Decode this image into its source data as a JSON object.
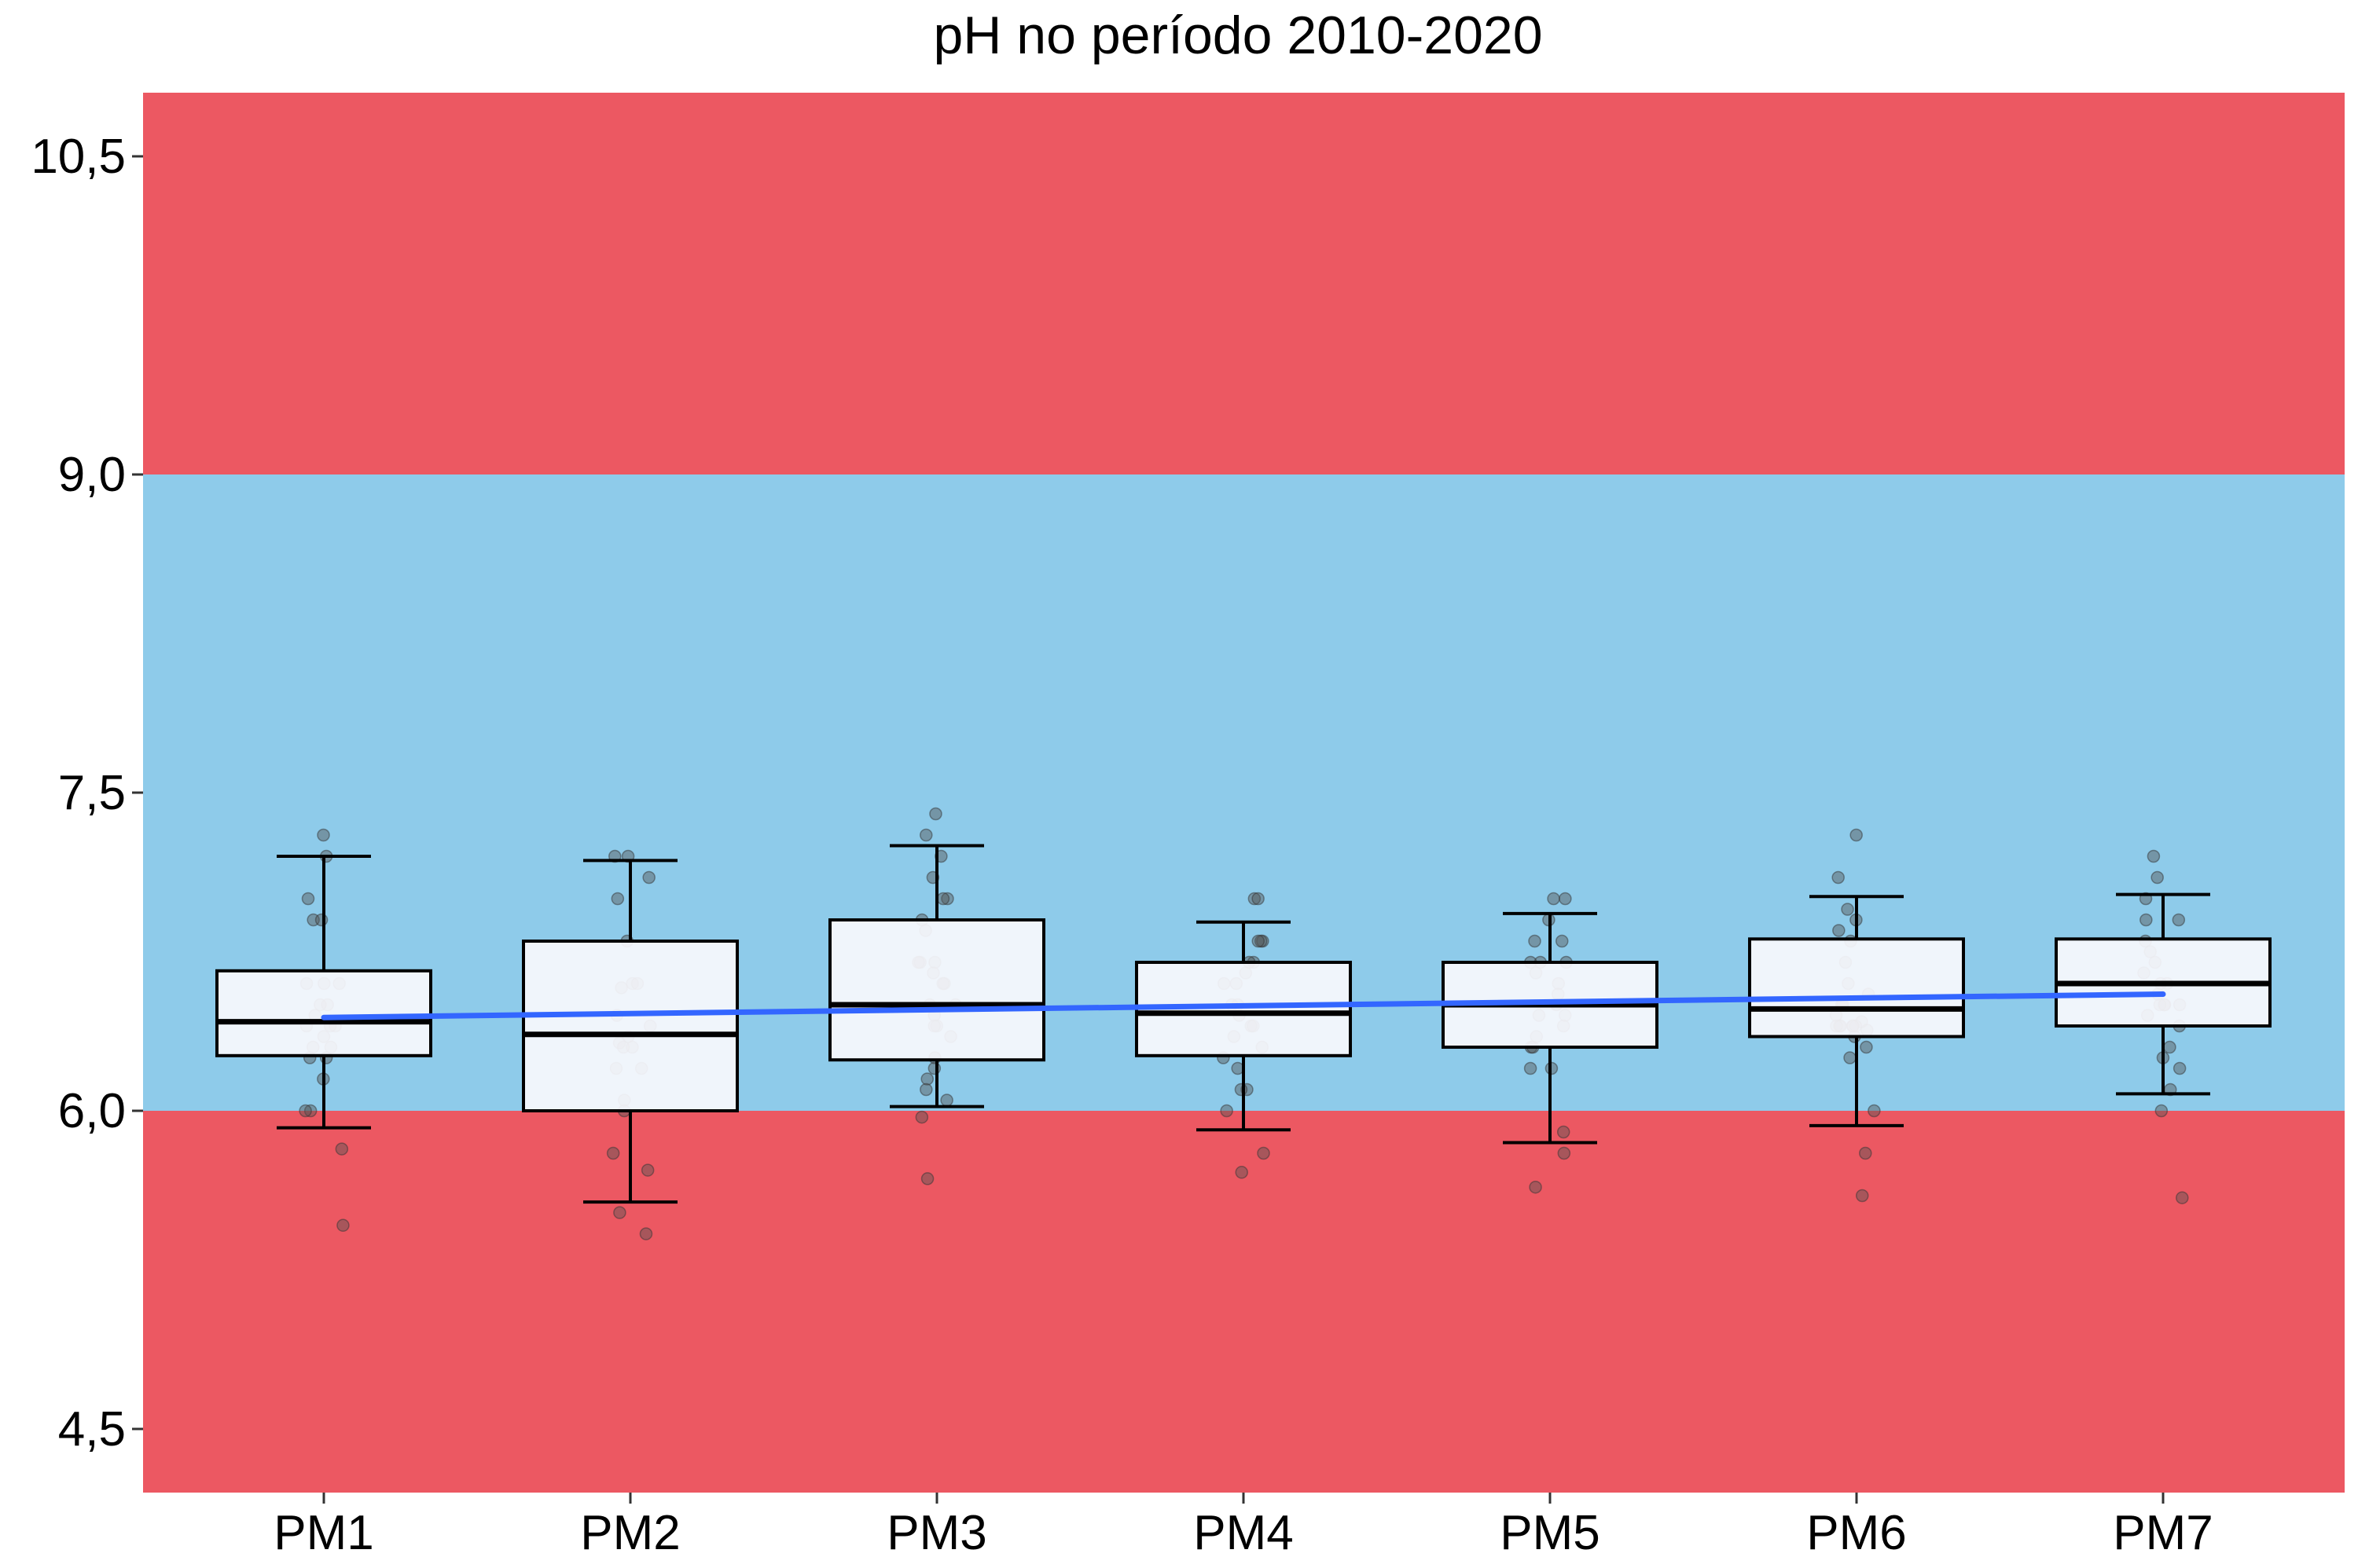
{
  "chart_data": {
    "type": "box",
    "title": "pH no período 2010-2020",
    "xlabel": "",
    "ylabel": "",
    "ylim": [
      4.2,
      10.8
    ],
    "yticks": [
      4.5,
      6.0,
      7.5,
      9.0,
      10.5
    ],
    "ytick_labels": [
      "4,5",
      "6,0",
      "7,5",
      "9,0",
      "10,5"
    ],
    "categories": [
      "PM1",
      "PM2",
      "PM3",
      "PM4",
      "PM5",
      "PM6",
      "PM7"
    ],
    "bands": [
      {
        "from": 4.2,
        "to": 6.0,
        "color": "#ec5862"
      },
      {
        "from": 6.0,
        "to": 9.0,
        "color": "#8ecbea"
      },
      {
        "from": 9.0,
        "to": 10.8,
        "color": "#ec5862"
      }
    ],
    "boxes": [
      {
        "whisker_low": 5.92,
        "q1": 6.26,
        "median": 6.42,
        "q3": 6.66,
        "whisker_high": 7.2
      },
      {
        "whisker_low": 5.57,
        "q1": 6.0,
        "median": 6.36,
        "q3": 6.8,
        "whisker_high": 7.18
      },
      {
        "whisker_low": 6.02,
        "q1": 6.24,
        "median": 6.5,
        "q3": 6.9,
        "whisker_high": 7.25
      },
      {
        "whisker_low": 5.91,
        "q1": 6.26,
        "median": 6.46,
        "q3": 6.7,
        "whisker_high": 6.89
      },
      {
        "whisker_low": 5.85,
        "q1": 6.3,
        "median": 6.5,
        "q3": 6.7,
        "whisker_high": 6.93
      },
      {
        "whisker_low": 5.93,
        "q1": 6.35,
        "median": 6.48,
        "q3": 6.81,
        "whisker_high": 7.01
      },
      {
        "whisker_low": 6.08,
        "q1": 6.4,
        "median": 6.6,
        "q3": 6.81,
        "whisker_high": 7.02
      }
    ],
    "points": [
      [
        7.3,
        7.2,
        7.0,
        6.9,
        6.9,
        6.6,
        6.6,
        6.6,
        6.5,
        6.5,
        6.45,
        6.4,
        6.4,
        6.4,
        6.35,
        6.3,
        6.3,
        6.25,
        6.25,
        6.15,
        6.0,
        6.0,
        5.82,
        5.46
      ],
      [
        7.2,
        7.2,
        7.1,
        7.0,
        6.8,
        6.6,
        6.6,
        6.58,
        6.45,
        6.4,
        6.35,
        6.32,
        6.3,
        6.3,
        6.2,
        6.2,
        6.05,
        6.0,
        5.8,
        5.72,
        5.52,
        5.42
      ],
      [
        7.4,
        7.3,
        7.2,
        7.1,
        7.0,
        7.0,
        6.9,
        6.85,
        6.7,
        6.7,
        6.7,
        6.65,
        6.6,
        6.6,
        6.5,
        6.5,
        6.45,
        6.4,
        6.4,
        6.35,
        6.25,
        6.2,
        6.15,
        6.1,
        6.05,
        5.97,
        5.68
      ],
      [
        7.0,
        7.0,
        6.8,
        6.8,
        6.8,
        6.7,
        6.7,
        6.65,
        6.6,
        6.6,
        6.5,
        6.5,
        6.45,
        6.4,
        6.4,
        6.35,
        6.3,
        6.25,
        6.2,
        6.1,
        6.1,
        6.0,
        5.8,
        5.71
      ],
      [
        7.0,
        7.0,
        6.9,
        6.8,
        6.8,
        6.7,
        6.7,
        6.7,
        6.65,
        6.6,
        6.55,
        6.5,
        6.45,
        6.45,
        6.4,
        6.35,
        6.3,
        6.3,
        6.2,
        6.2,
        5.9,
        5.8,
        5.64
      ],
      [
        7.3,
        7.1,
        6.95,
        6.9,
        6.85,
        6.8,
        6.7,
        6.6,
        6.55,
        6.5,
        6.5,
        6.45,
        6.42,
        6.4,
        6.4,
        6.4,
        6.4,
        6.4,
        6.4,
        6.38,
        6.35,
        6.3,
        6.25,
        6.0,
        5.8,
        5.6
      ],
      [
        7.2,
        7.1,
        7.0,
        6.9,
        6.9,
        6.8,
        6.75,
        6.7,
        6.65,
        6.6,
        6.6,
        6.55,
        6.5,
        6.5,
        6.5,
        6.5,
        6.45,
        6.4,
        6.3,
        6.25,
        6.2,
        6.1,
        6.0,
        5.59
      ]
    ],
    "trend": {
      "from": 6.44,
      "to": 6.55,
      "color": "#3366ff"
    },
    "box_fill": "#f7f8fc",
    "point_color": "#555555"
  }
}
